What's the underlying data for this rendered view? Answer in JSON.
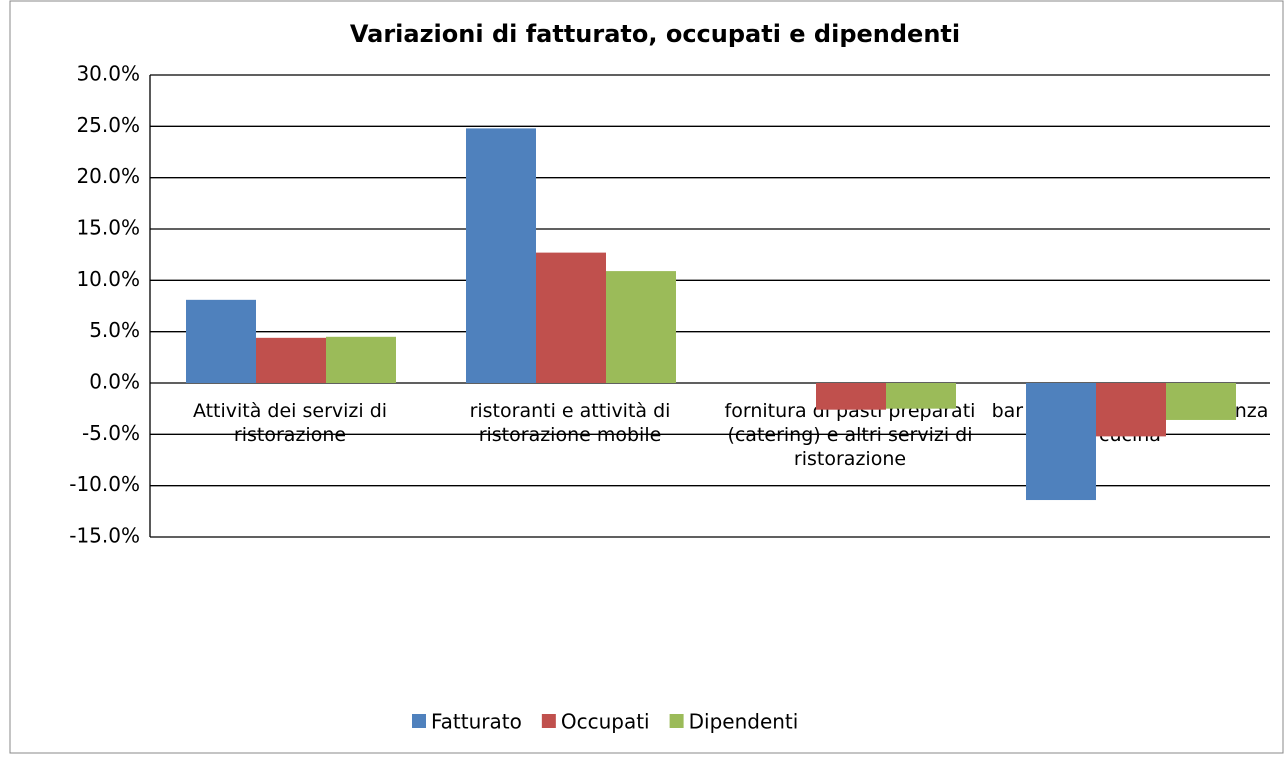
{
  "chart_data": {
    "type": "bar",
    "title": "Variazioni di fatturato, occupati e dipendenti",
    "categories": [
      "Attività dei servizi di ristorazione",
      "ristoranti e attività di ristorazione mobile",
      "fornitura di pasti preparati (catering) e altri servizi di ristorazione",
      "bar e altri servizi simili senza cucina"
    ],
    "series": [
      {
        "name": "Fatturato",
        "color": "#4f81bd",
        "values": [
          8.1,
          24.8,
          0,
          -11.4
        ]
      },
      {
        "name": "Occupati",
        "color": "#c0504d",
        "values": [
          4.4,
          12.7,
          -2.6,
          -5.2
        ]
      },
      {
        "name": "Dipendenti",
        "color": "#9bbb59",
        "values": [
          4.5,
          10.9,
          -2.5,
          -3.6
        ]
      }
    ],
    "ylim": [
      -15,
      30
    ],
    "yticks": [
      {
        "value": -15,
        "label": "-15.0%"
      },
      {
        "value": -10,
        "label": "-10.0%"
      },
      {
        "value": -5,
        "label": "-5.0%"
      },
      {
        "value": 0,
        "label": "0.0%"
      },
      {
        "value": 5,
        "label": "5.0%"
      },
      {
        "value": 10,
        "label": "10.0%"
      },
      {
        "value": 15,
        "label": "15.0%"
      },
      {
        "value": 20,
        "label": "20.0%"
      },
      {
        "value": 25,
        "label": "25.0%"
      },
      {
        "value": 30,
        "label": "30.0%"
      }
    ],
    "grid": true,
    "legend": "bottom"
  }
}
